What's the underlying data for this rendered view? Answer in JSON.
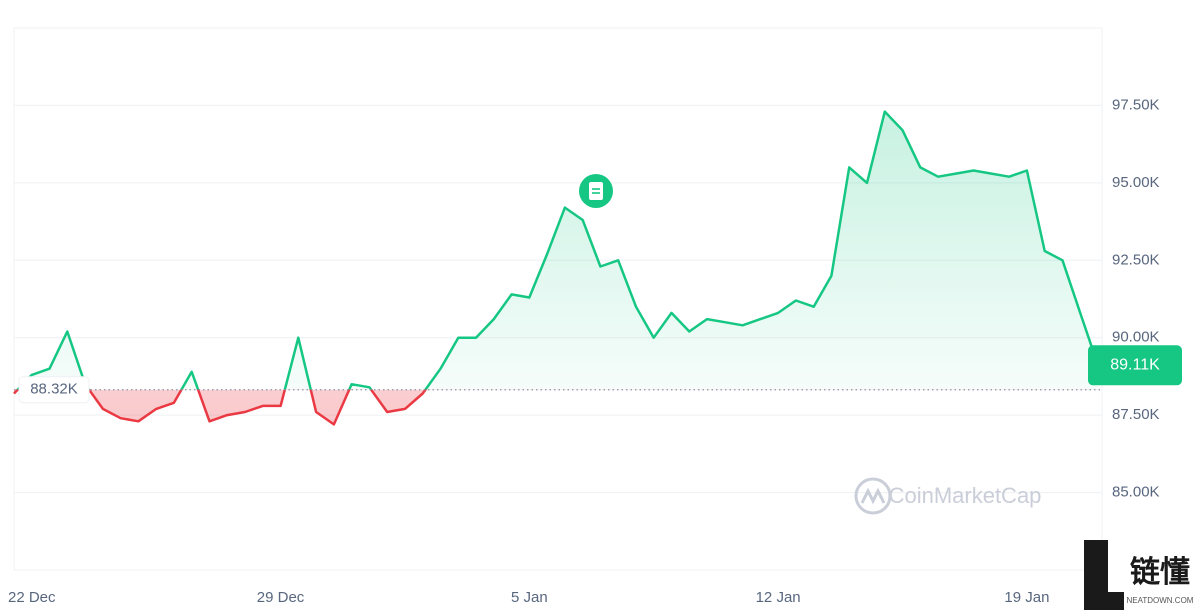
{
  "chart_data": {
    "type": "line",
    "categories": [
      null,
      "22 Dec",
      null,
      null,
      null,
      null,
      null,
      null,
      null,
      null,
      null,
      null,
      null,
      null,
      null,
      "29 Dec",
      null,
      null,
      null,
      null,
      null,
      null,
      null,
      null,
      null,
      null,
      null,
      null,
      null,
      "5 Jan",
      null,
      null,
      null,
      null,
      null,
      null,
      null,
      null,
      null,
      null,
      null,
      null,
      null,
      "12 Jan",
      null,
      null,
      null,
      null,
      null,
      null,
      null,
      null,
      null,
      null,
      null,
      null,
      null,
      "19 Jan",
      null,
      null,
      null,
      null
    ],
    "series": [
      {
        "color": "#16c784",
        "negative_color": "#ea3943",
        "values": [
          88.2,
          88.8,
          89.0,
          90.2,
          88.5,
          87.7,
          87.4,
          87.3,
          87.7,
          87.9,
          88.9,
          87.3,
          87.5,
          87.6,
          87.8,
          87.8,
          90.0,
          87.6,
          87.2,
          88.5,
          88.4,
          87.6,
          87.7,
          88.2,
          89.0,
          90.0,
          90.0,
          90.6,
          91.4,
          91.3,
          92.7,
          94.2,
          93.8,
          92.3,
          92.5,
          91.0,
          90.0,
          90.8,
          90.2,
          90.6,
          90.5,
          90.4,
          90.6,
          90.8,
          91.2,
          91.0,
          92.0,
          95.5,
          95.0,
          97.3,
          96.7,
          95.5,
          95.2,
          95.3,
          95.4,
          95.3,
          95.2,
          95.4,
          92.8,
          92.5,
          90.8,
          89.11
        ],
        "value_labels": [
          null,
          null,
          null,
          null,
          null,
          null,
          null,
          null,
          null,
          null,
          null,
          null,
          null,
          null,
          null,
          null,
          null,
          null,
          null,
          null,
          null,
          null,
          null,
          null,
          null,
          null,
          null,
          null,
          null,
          null,
          null,
          null,
          null,
          null,
          null,
          null,
          null,
          null,
          null,
          null,
          null,
          null,
          null,
          null,
          null,
          null,
          null,
          null,
          null,
          null,
          null,
          null,
          null,
          null,
          null,
          null,
          null,
          null,
          null,
          null,
          null,
          "89.11K"
        ]
      }
    ],
    "baseline": {
      "value": 88.32,
      "label": "88.32K"
    },
    "ylim": [
      82.5,
      100
    ],
    "yticks": [
      {
        "value": 85,
        "label": "85.00K"
      },
      {
        "value": 87.5,
        "label": "87.50K"
      },
      {
        "value": 90,
        "label": "90.00K"
      },
      {
        "value": 92.5,
        "label": "92.50K"
      },
      {
        "value": 95,
        "label": "95.00K"
      },
      {
        "value": 97.5,
        "label": "97.50K"
      }
    ],
    "grid": true,
    "watermark": "CoinMarketCap"
  },
  "badge": {
    "title": "链懂",
    "subtitle": "NEATDOWN.COM"
  }
}
